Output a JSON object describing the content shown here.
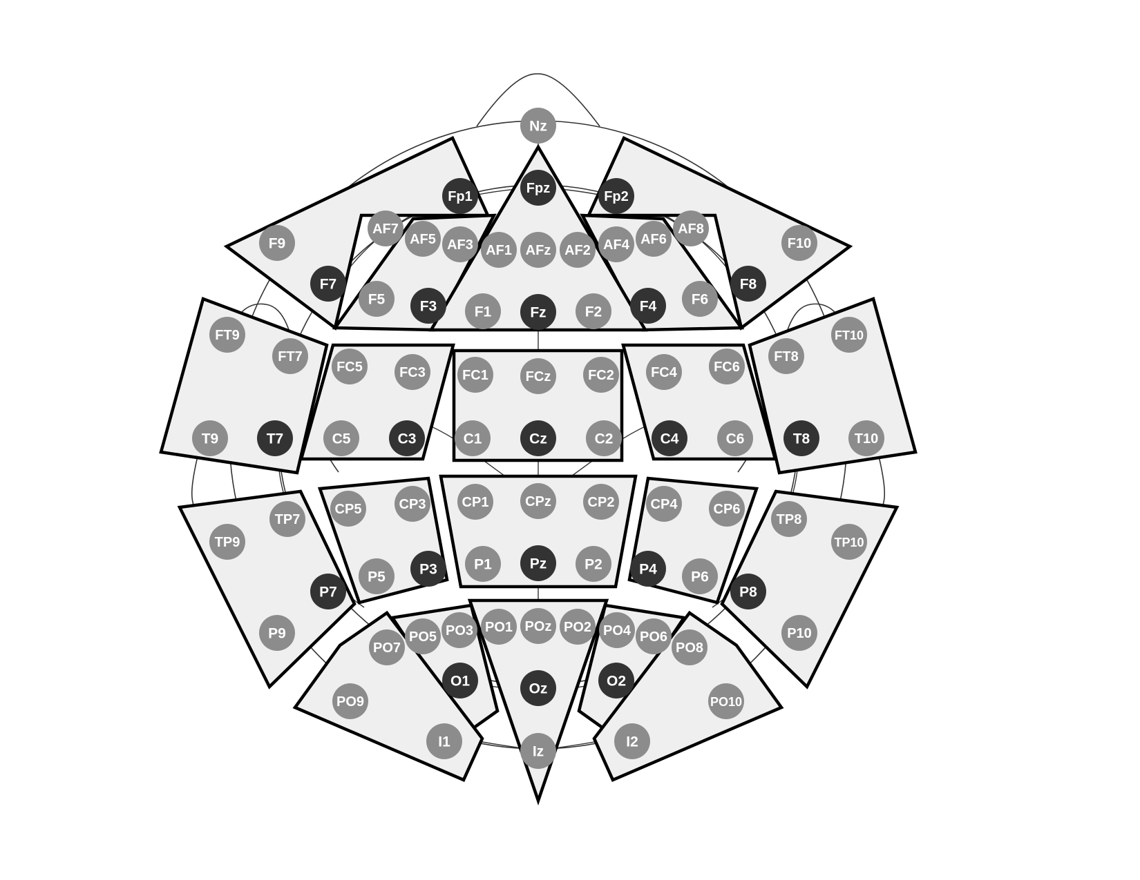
{
  "colors": {
    "primary_electrode": "#333333",
    "secondary_electrode": "#8c8c8c",
    "region_fill": "#efefef",
    "region_stroke": "#000000",
    "electrode_text": "#ffffff"
  },
  "electrodes": [
    {
      "label": "Nz",
      "primary": false
    },
    {
      "label": "Fp1",
      "primary": true
    },
    {
      "label": "Fpz",
      "primary": true
    },
    {
      "label": "Fp2",
      "primary": true
    },
    {
      "label": "AF7",
      "primary": false
    },
    {
      "label": "AF5",
      "primary": false
    },
    {
      "label": "AF3",
      "primary": false
    },
    {
      "label": "AF1",
      "primary": false
    },
    {
      "label": "AFz",
      "primary": false
    },
    {
      "label": "AF2",
      "primary": false
    },
    {
      "label": "AF4",
      "primary": false
    },
    {
      "label": "AF6",
      "primary": false
    },
    {
      "label": "AF8",
      "primary": false
    },
    {
      "label": "F9",
      "primary": false
    },
    {
      "label": "F7",
      "primary": true
    },
    {
      "label": "F5",
      "primary": false
    },
    {
      "label": "F3",
      "primary": true
    },
    {
      "label": "F1",
      "primary": false
    },
    {
      "label": "Fz",
      "primary": true
    },
    {
      "label": "F2",
      "primary": false
    },
    {
      "label": "F4",
      "primary": true
    },
    {
      "label": "F6",
      "primary": false
    },
    {
      "label": "F8",
      "primary": true
    },
    {
      "label": "F10",
      "primary": false
    },
    {
      "label": "FT9",
      "primary": false
    },
    {
      "label": "FT7",
      "primary": false
    },
    {
      "label": "FC5",
      "primary": false
    },
    {
      "label": "FC3",
      "primary": false
    },
    {
      "label": "FC1",
      "primary": false
    },
    {
      "label": "FCz",
      "primary": false
    },
    {
      "label": "FC2",
      "primary": false
    },
    {
      "label": "FC4",
      "primary": false
    },
    {
      "label": "FC6",
      "primary": false
    },
    {
      "label": "FT8",
      "primary": false
    },
    {
      "label": "FT10",
      "primary": false
    },
    {
      "label": "T9",
      "primary": false
    },
    {
      "label": "T7",
      "primary": true
    },
    {
      "label": "C5",
      "primary": false
    },
    {
      "label": "C3",
      "primary": true
    },
    {
      "label": "C1",
      "primary": false
    },
    {
      "label": "Cz",
      "primary": true
    },
    {
      "label": "C2",
      "primary": false
    },
    {
      "label": "C4",
      "primary": true
    },
    {
      "label": "C6",
      "primary": false
    },
    {
      "label": "T8",
      "primary": true
    },
    {
      "label": "T10",
      "primary": false
    },
    {
      "label": "TP9",
      "primary": false
    },
    {
      "label": "TP7",
      "primary": false
    },
    {
      "label": "CP5",
      "primary": false
    },
    {
      "label": "CP3",
      "primary": false
    },
    {
      "label": "CP1",
      "primary": false
    },
    {
      "label": "CPz",
      "primary": false
    },
    {
      "label": "CP2",
      "primary": false
    },
    {
      "label": "CP4",
      "primary": false
    },
    {
      "label": "CP6",
      "primary": false
    },
    {
      "label": "TP8",
      "primary": false
    },
    {
      "label": "TP10",
      "primary": false
    },
    {
      "label": "P7",
      "primary": true
    },
    {
      "label": "P5",
      "primary": false
    },
    {
      "label": "P3",
      "primary": true
    },
    {
      "label": "P1",
      "primary": false
    },
    {
      "label": "Pz",
      "primary": true
    },
    {
      "label": "P2",
      "primary": false
    },
    {
      "label": "P4",
      "primary": true
    },
    {
      "label": "P6",
      "primary": false
    },
    {
      "label": "P8",
      "primary": true
    },
    {
      "label": "P9",
      "primary": false
    },
    {
      "label": "P10",
      "primary": false
    },
    {
      "label": "PO7",
      "primary": false
    },
    {
      "label": "PO5",
      "primary": false
    },
    {
      "label": "PO3",
      "primary": false
    },
    {
      "label": "PO1",
      "primary": false
    },
    {
      "label": "POz",
      "primary": false
    },
    {
      "label": "PO2",
      "primary": false
    },
    {
      "label": "PO4",
      "primary": false
    },
    {
      "label": "PO6",
      "primary": false
    },
    {
      "label": "PO8",
      "primary": false
    },
    {
      "label": "PO9",
      "primary": false
    },
    {
      "label": "O1",
      "primary": true
    },
    {
      "label": "Oz",
      "primary": true
    },
    {
      "label": "O2",
      "primary": true
    },
    {
      "label": "PO10",
      "primary": false
    },
    {
      "label": "I1",
      "primary": false
    },
    {
      "label": "Iz",
      "primary": false
    },
    {
      "label": "I2",
      "primary": false
    }
  ]
}
